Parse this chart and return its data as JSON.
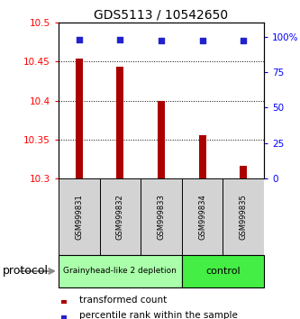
{
  "title": "GDS5113 / 10542650",
  "samples": [
    "GSM999831",
    "GSM999832",
    "GSM999833",
    "GSM999834",
    "GSM999835"
  ],
  "bar_values": [
    10.454,
    10.443,
    10.4,
    10.356,
    10.316
  ],
  "bar_bottom": 10.3,
  "percentile_values": [
    98,
    98,
    97,
    97,
    97
  ],
  "ylim_left": [
    10.3,
    10.5
  ],
  "yticks_left": [
    10.3,
    10.35,
    10.4,
    10.45,
    10.5
  ],
  "ytick_labels_left": [
    "10.3",
    "10.35",
    "10.4",
    "10.45",
    "10.5"
  ],
  "yticks_right": [
    0,
    25,
    50,
    75,
    100
  ],
  "ytick_labels_right": [
    "0",
    "25",
    "50",
    "75",
    "100%"
  ],
  "grid_yticks": [
    10.35,
    10.4,
    10.45
  ],
  "bar_color": "#aa0000",
  "dot_color": "#2222cc",
  "groups": [
    {
      "label": "Grainyhead-like 2 depletion",
      "color": "#aaffaa",
      "indices": [
        0,
        1,
        2
      ]
    },
    {
      "label": "control",
      "color": "#44ee44",
      "indices": [
        3,
        4
      ]
    }
  ],
  "protocol_label": "protocol",
  "legend_bar_label": "transformed count",
  "legend_dot_label": "percentile rank within the sample",
  "bar_width": 0.18,
  "title_fontsize": 10,
  "tick_fontsize": 7.5,
  "sample_fontsize": 6,
  "group_fontsize_small": 6.5,
  "group_fontsize_large": 8,
  "legend_fontsize": 7.5,
  "protocol_fontsize": 9
}
